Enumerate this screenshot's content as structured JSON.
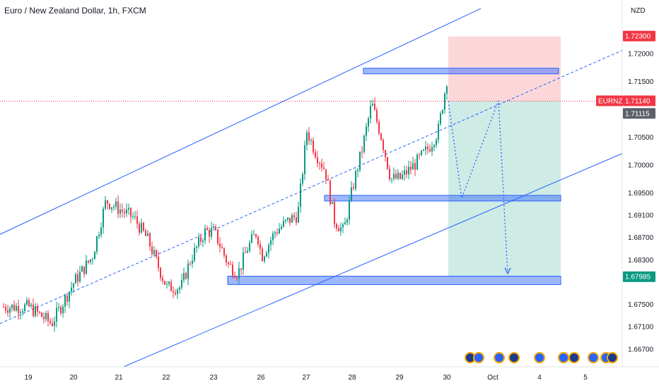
{
  "chart_data": {
    "type": "candlestick",
    "title": "Euro / New Zealand Dollar, 1h, FXCM",
    "symbol": "EURNZD",
    "currency": "NZD",
    "ylim": [
      1.664,
      1.727
    ],
    "y_ticks": [
      "1.72000",
      "1.71500",
      "1.70500",
      "1.70000",
      "1.69500",
      "1.69100",
      "1.68700",
      "1.68300",
      "1.67500",
      "1.67100",
      "1.66700"
    ],
    "x_ticks": [
      "19",
      "20",
      "21",
      "22",
      "23",
      "26",
      "27",
      "28",
      "29",
      "30",
      "Oct",
      "4",
      "5"
    ],
    "price_tags": [
      {
        "label": "1.72300",
        "value": 1.723,
        "color": "#f23645"
      },
      {
        "label": "EURNZD",
        "value": 1.7114,
        "color": "#f23645"
      },
      {
        "label": "1.71140",
        "value": 1.7114,
        "color": "#f23645"
      },
      {
        "label": "1.71115",
        "value": 1.71115,
        "color": "#5d606b"
      },
      {
        "label": "1.67985",
        "value": 1.67985,
        "color": "#089981"
      }
    ],
    "position": {
      "entry": 1.7114,
      "stop": 1.723,
      "target": 1.67985
    },
    "candle_anchors": [
      [
        "19",
        1.6745
      ],
      [
        "19.5",
        1.6715
      ],
      [
        "20",
        1.679
      ],
      [
        "20.4",
        1.6835
      ],
      [
        "20.7",
        1.6935
      ],
      [
        "21",
        1.692
      ],
      [
        "21.3",
        1.6905
      ],
      [
        "21.6",
        1.6865
      ],
      [
        "21.9",
        1.68
      ],
      [
        "22",
        1.678
      ],
      [
        "22.3",
        1.678
      ],
      [
        "22.5",
        1.683
      ],
      [
        "22.8",
        1.688
      ],
      [
        "23",
        1.688
      ],
      [
        "23.3",
        1.682
      ],
      [
        "23.5",
        1.6805
      ],
      [
        "23.7",
        1.685
      ],
      [
        "23.9",
        1.688
      ],
      [
        "26",
        1.6835
      ],
      [
        "26.3",
        1.688
      ],
      [
        "26.6",
        1.69
      ],
      [
        "26.8",
        1.691
      ],
      [
        "27",
        1.706
      ],
      [
        "27.2",
        1.702
      ],
      [
        "27.4",
        1.699
      ],
      [
        "27.6",
        1.69
      ],
      [
        "27.8",
        1.688
      ],
      [
        "28",
        1.696
      ],
      [
        "28.2",
        1.703
      ],
      [
        "28.4",
        1.711
      ],
      [
        "28.6",
        1.705
      ],
      [
        "28.8",
        1.6975
      ],
      [
        "29",
        1.6975
      ],
      [
        "29.3",
        1.7
      ],
      [
        "29.6",
        1.703
      ],
      [
        "29.8",
        1.706
      ],
      [
        "30",
        1.716
      ],
      [
        "30.2",
        1.719
      ],
      [
        "30.35",
        1.712
      ]
    ]
  }
}
